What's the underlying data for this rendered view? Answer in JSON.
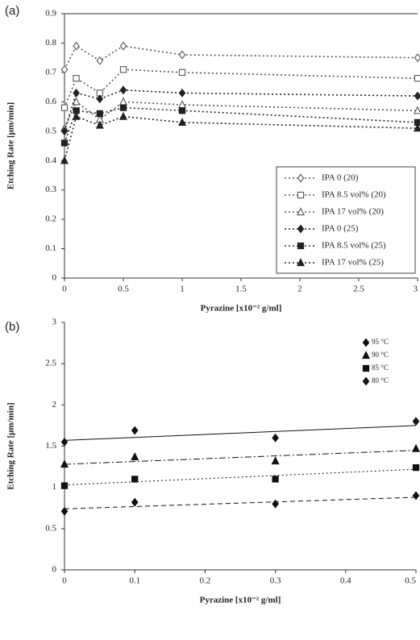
{
  "chart_data": [
    {
      "type": "line",
      "panel_label": "(a)",
      "x_label": "Pyrazine [x10⁻² g/ml]",
      "y_label": "Etching Rate [μm/min]",
      "x": [
        0,
        0.1,
        0.3,
        0.5,
        1,
        3
      ],
      "xlim": [
        0,
        3
      ],
      "xticks": [
        0,
        0.5,
        1,
        1.5,
        2,
        2.5,
        3
      ],
      "ylim": [
        0,
        0.9
      ],
      "yticks": [
        0,
        0.1,
        0.2,
        0.3,
        0.4,
        0.5,
        0.6,
        0.7,
        0.8,
        0.9
      ],
      "legend": "lower right",
      "dash": "dotted",
      "series": [
        {
          "name": "IPA 0 (20)",
          "color": "#555555",
          "marker": "diamond",
          "filled": false,
          "values": [
            0.71,
            0.79,
            0.74,
            0.79,
            0.76,
            0.75
          ]
        },
        {
          "name": "IPA 8.5 vol% (20)",
          "color": "#555555",
          "marker": "square",
          "filled": false,
          "values": [
            0.58,
            0.68,
            0.63,
            0.71,
            0.7,
            0.68
          ]
        },
        {
          "name": "IPA 17 vol% (20)",
          "color": "#555555",
          "marker": "triangle",
          "filled": false,
          "values": [
            0.51,
            0.6,
            0.54,
            0.6,
            0.59,
            0.57
          ]
        },
        {
          "name": "IPA 0 (25)",
          "color": "#222222",
          "marker": "diamond",
          "filled": true,
          "values": [
            0.5,
            0.63,
            0.61,
            0.64,
            0.63,
            0.62
          ]
        },
        {
          "name": "IPA 8.5 vol% (25)",
          "color": "#222222",
          "marker": "square",
          "filled": true,
          "values": [
            0.46,
            0.57,
            0.56,
            0.58,
            0.57,
            0.53
          ]
        },
        {
          "name": "IPA 17 vol% (25)",
          "color": "#222222",
          "marker": "triangle",
          "filled": true,
          "values": [
            0.4,
            0.55,
            0.52,
            0.55,
            0.53,
            0.51
          ]
        }
      ]
    },
    {
      "type": "scatter",
      "panel_label": "(b)",
      "x_label": "Pyrazine [x10⁻² g/ml]",
      "y_label": "Etching Rate [μm/min]",
      "x": [
        0,
        0.1,
        0.3,
        0.5
      ],
      "xlim": [
        0,
        0.5
      ],
      "xticks": [
        0,
        0.1,
        0.2,
        0.3,
        0.4,
        0.5
      ],
      "ylim": [
        0,
        3
      ],
      "yticks": [
        0,
        0.5,
        1,
        1.5,
        2,
        2.5,
        3
      ],
      "legend": "upper right",
      "series": [
        {
          "name": "95 °C",
          "color": "#111111",
          "marker": "diamond",
          "filled": true,
          "dash": "solid",
          "values": [
            1.55,
            1.69,
            1.6,
            1.8
          ],
          "trendline": [
            1.57,
            1.75
          ]
        },
        {
          "name": "90 °C",
          "color": "#111111",
          "marker": "triangle",
          "filled": true,
          "dash": "dashdot",
          "values": [
            1.28,
            1.37,
            1.32,
            1.47
          ],
          "trendline": [
            1.28,
            1.45
          ]
        },
        {
          "name": "85 °C",
          "color": "#111111",
          "marker": "square",
          "filled": true,
          "dash": "dotted",
          "values": [
            1.02,
            1.1,
            1.1,
            1.24
          ],
          "trendline": [
            1.03,
            1.22
          ]
        },
        {
          "name": "80 °C",
          "color": "#111111",
          "marker": "diamond",
          "filled": true,
          "dash": "dashed",
          "values": [
            0.71,
            0.82,
            0.8,
            0.9
          ],
          "trendline": [
            0.74,
            0.88
          ]
        }
      ]
    }
  ]
}
